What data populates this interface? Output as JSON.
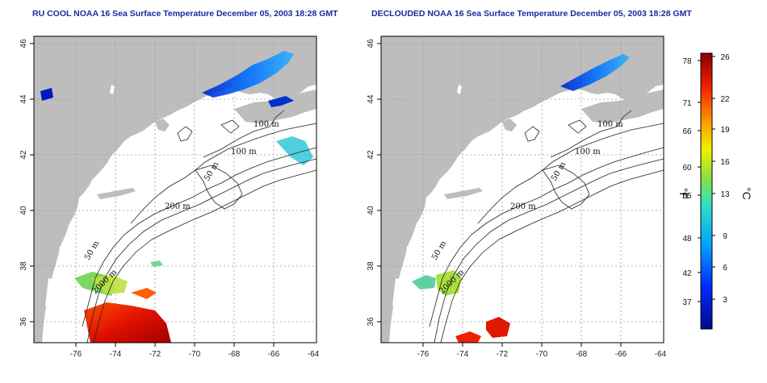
{
  "titles": {
    "left": "RU COOL NOAA 16 Sea Surface Temperature December 05, 2003 18:28 GMT",
    "right": "DECLOUDED NOAA 16 Sea Surface Temperature December 05, 2003 18:28 GMT"
  },
  "map": {
    "lon_ticks": [
      "-76",
      "-74",
      "-72",
      "-70",
      "-68",
      "-66",
      "-64"
    ],
    "lat_ticks": [
      "46",
      "44",
      "42",
      "40",
      "38",
      "36"
    ],
    "contour_labels": [
      "100 m",
      "100 m",
      "50 m",
      "200 m",
      "50 m",
      "2000 m"
    ],
    "colors": {
      "land": "#bdbdbd",
      "ocean": "#ffffff",
      "grid": "#9a9a9a"
    }
  },
  "colorbar": {
    "fahrenheit_ticks": [
      "78",
      "71",
      "66",
      "60",
      "55",
      "48",
      "42",
      "37"
    ],
    "celsius_ticks": [
      "26",
      "22",
      "19",
      "16",
      "13",
      "9",
      "6",
      "3"
    ],
    "unit_f": "°F",
    "unit_c": "°C"
  }
}
